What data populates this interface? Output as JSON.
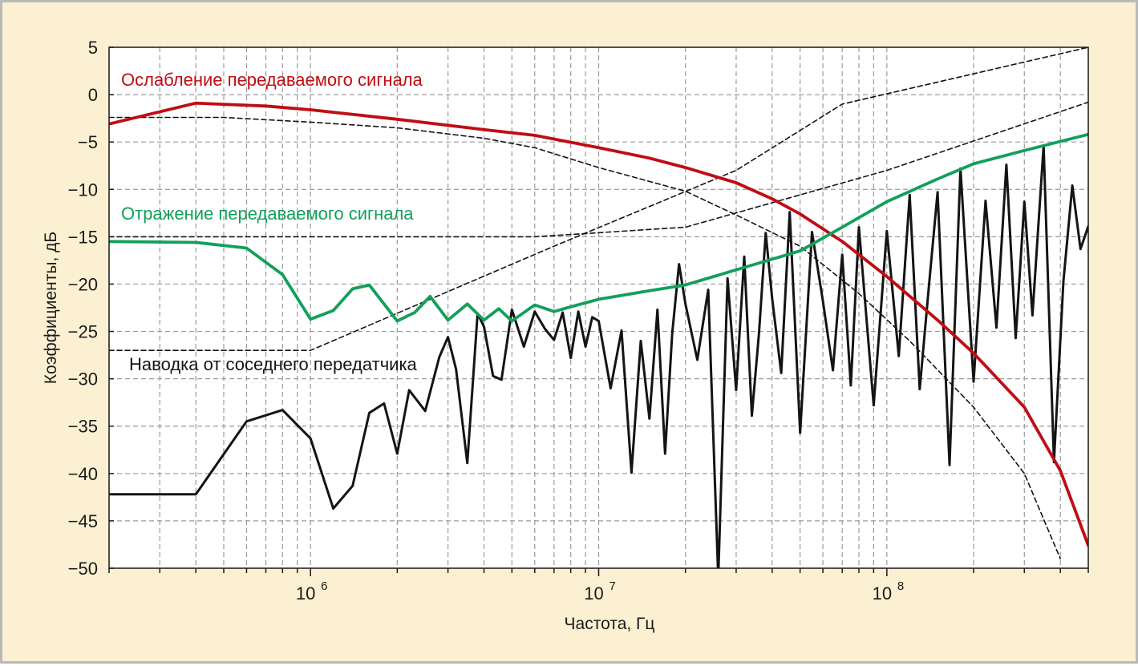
{
  "chart_data": {
    "type": "line",
    "title": "",
    "xlabel": "Частота, Гц",
    "ylabel": "Коэффициенты, дБ",
    "x_scale": "log",
    "xlim": [
      200000,
      500000000
    ],
    "ylim": [
      -50,
      5
    ],
    "grid": true,
    "y_ticks": [
      5,
      0,
      -5,
      -10,
      -15,
      -20,
      -25,
      -30,
      -35,
      -40,
      -45,
      -50
    ],
    "y_tick_labels": [
      "5",
      "0",
      "−5",
      "−10",
      "−15",
      "−20",
      "−25",
      "−30",
      "−35",
      "−40",
      "−45",
      "−50"
    ],
    "x_major_ticks": [
      {
        "value": 1000000,
        "base": "10",
        "exp": "6"
      },
      {
        "value": 10000000,
        "base": "10",
        "exp": "7"
      },
      {
        "value": 100000000,
        "base": "10",
        "exp": "8"
      }
    ],
    "series": [
      {
        "name": "Ослабление передаваемого сигнала",
        "color": "#c00d14",
        "style": "solid",
        "x": [
          200000,
          400000,
          700000,
          1000000,
          2000000,
          4000000,
          6000000,
          10000000,
          15000000,
          20000000,
          30000000,
          40000000,
          50000000,
          70000000,
          100000000,
          150000000,
          200000000,
          300000000,
          400000000,
          500000000
        ],
        "y": [
          -3.1,
          -0.9,
          -1.2,
          -1.6,
          -2.6,
          -3.7,
          -4.3,
          -5.6,
          -6.7,
          -7.7,
          -9.3,
          -11.0,
          -12.6,
          -15.5,
          -19.2,
          -23.8,
          -27.3,
          -33.0,
          -39.7,
          -47.6
        ]
      },
      {
        "name": "Отражение передаваемого сигнала",
        "color": "#12a05a",
        "style": "solid",
        "x": [
          200000,
          400000,
          600000,
          800000,
          1000000,
          1200000,
          1400000,
          1600000,
          2000000,
          2300000,
          2600000,
          3000000,
          3500000,
          4000000,
          4500000,
          5000000,
          6000000,
          7000000,
          8000000,
          10000000,
          12000000,
          15000000,
          20000000,
          30000000,
          50000000,
          70000000,
          100000000,
          150000000,
          200000000,
          300000000,
          500000000
        ],
        "y": [
          -15.5,
          -15.6,
          -16.2,
          -19.0,
          -23.7,
          -22.8,
          -20.5,
          -20.1,
          -23.9,
          -23.0,
          -21.3,
          -23.8,
          -22.1,
          -23.8,
          -22.6,
          -23.9,
          -22.2,
          -22.9,
          -22.4,
          -21.6,
          -21.2,
          -20.7,
          -20.1,
          -18.5,
          -16.5,
          -14.0,
          -11.3,
          -8.9,
          -7.3,
          -5.9,
          -4.2
        ]
      },
      {
        "name": "Наводка от соседнего передатчика",
        "color": "#141414",
        "style": "solid",
        "x": [
          200000,
          400000,
          600000,
          800000,
          1000000,
          1200000,
          1400000,
          1600000,
          1800000,
          2000000,
          2200000,
          2500000,
          2800000,
          3000000,
          3200000,
          3500000,
          3800000,
          4000000,
          4300000,
          4600000,
          5000000,
          5500000,
          6000000,
          6500000,
          7000000,
          7500000,
          8000000,
          8500000,
          9000000,
          9500000,
          10000000,
          11000000,
          12000000,
          13000000,
          14000000,
          15000000,
          16000000,
          17000000,
          18000000,
          19000000,
          20000000,
          22000000,
          24000000,
          26000000,
          28000000,
          30000000,
          32000000,
          34000000,
          36000000,
          38000000,
          40000000,
          43000000,
          46000000,
          50000000,
          55000000,
          60000000,
          65000000,
          70000000,
          75000000,
          80000000,
          90000000,
          100000000,
          110000000,
          120000000,
          130000000,
          140000000,
          150000000,
          165000000,
          180000000,
          200000000,
          220000000,
          240000000,
          260000000,
          280000000,
          300000000,
          320000000,
          350000000,
          380000000,
          410000000,
          440000000,
          470000000,
          500000000
        ],
        "y": [
          -42.2,
          -42.2,
          -34.5,
          -33.3,
          -36.3,
          -43.7,
          -41.3,
          -33.6,
          -32.6,
          -37.9,
          -31.2,
          -33.4,
          -27.7,
          -25.6,
          -29.0,
          -38.9,
          -23.1,
          -24.5,
          -29.7,
          -30.1,
          -22.7,
          -26.6,
          -22.9,
          -24.7,
          -25.9,
          -23.0,
          -27.8,
          -22.9,
          -26.6,
          -23.5,
          -23.9,
          -31.0,
          -24.9,
          -39.9,
          -26.0,
          -34.2,
          -22.7,
          -37.9,
          -25.2,
          -17.9,
          -22.1,
          -28.0,
          -20.6,
          -51.0,
          -19.4,
          -31.2,
          -17.1,
          -33.9,
          -25.2,
          -14.6,
          -21.5,
          -29.4,
          -12.4,
          -35.7,
          -14.5,
          -21.8,
          -29.1,
          -16.9,
          -30.7,
          -14.0,
          -32.8,
          -14.4,
          -27.6,
          -10.6,
          -31.1,
          -20.2,
          -10.3,
          -39.1,
          -7.8,
          -30.3,
          -11.2,
          -24.6,
          -7.4,
          -25.7,
          -11.3,
          -23.3,
          -5.4,
          -38.8,
          -19.7,
          -9.6,
          -16.3,
          -13.9
        ]
      },
      {
        "name": "",
        "color": "#141414",
        "style": "dashed",
        "x": [
          200000,
          500000,
          1000000,
          2000000,
          4000000,
          6000000,
          10000000,
          20000000,
          30000000,
          50000000,
          80000000,
          120000000,
          200000000,
          300000000,
          400000000
        ],
        "y": [
          -2.4,
          -2.4,
          -2.9,
          -3.5,
          -4.6,
          -5.6,
          -7.7,
          -10.2,
          -12.7,
          -16.0,
          -21.0,
          -26.0,
          -33.0,
          -40.0,
          -49.0
        ]
      },
      {
        "name": "",
        "color": "#141414",
        "style": "dashed",
        "x": [
          200000,
          1000000,
          7000000,
          30000000,
          70000000,
          500000000
        ],
        "y": [
          -27.0,
          -27.0,
          -16.0,
          -8.0,
          -1.0,
          5.0
        ]
      },
      {
        "name": "",
        "color": "#141414",
        "style": "dashed",
        "x": [
          200000,
          6000000,
          20000000,
          100000000,
          500000000
        ],
        "y": [
          -15.0,
          -15.0,
          -14.0,
          -8.0,
          -0.8
        ]
      }
    ],
    "annotations": [
      {
        "text": "Ослабление передаваемого сигнала",
        "color": "#c00d14"
      },
      {
        "text": "Отражение передаваемого сигнала",
        "color": "#12a05a"
      },
      {
        "text": "Наводка от соседнего передатчика",
        "color": "#141414"
      }
    ]
  }
}
